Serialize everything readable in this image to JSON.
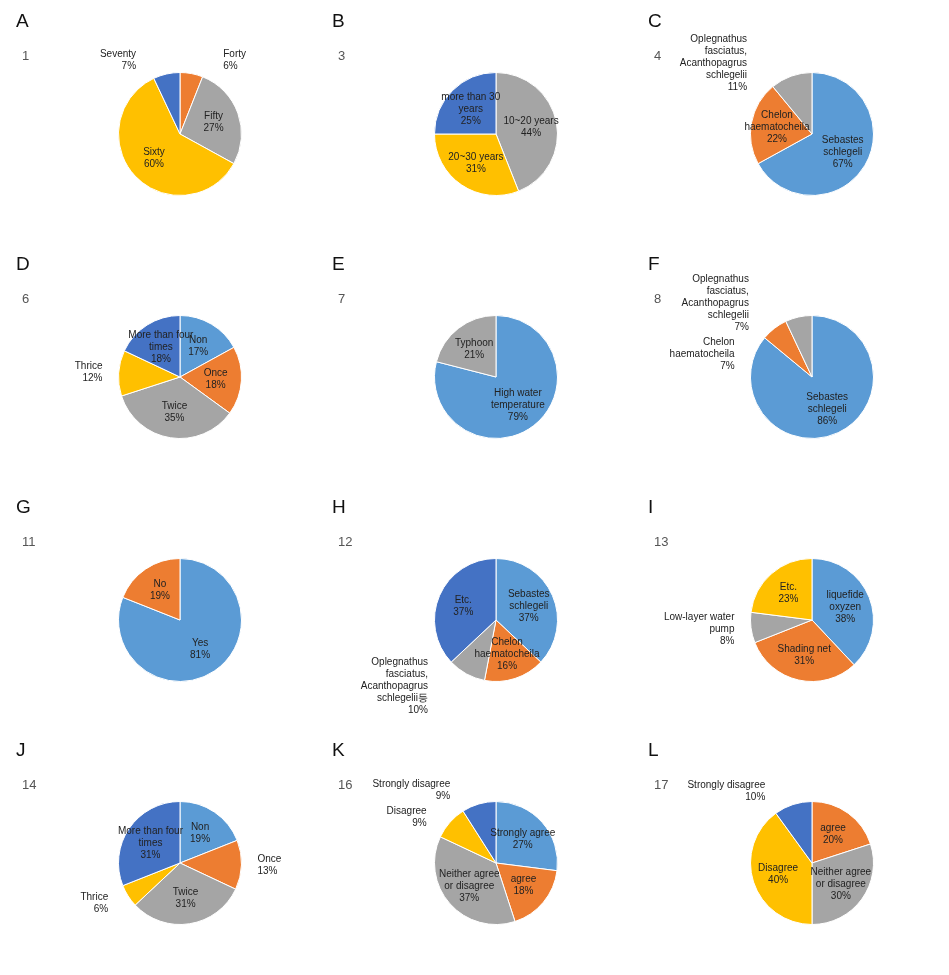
{
  "chart_data": [
    {
      "type": "pie",
      "title": "A",
      "subtitle": "1",
      "categories": [
        "Forty",
        "Fifty",
        "Sixty",
        "Seventy"
      ],
      "values": [
        6,
        27,
        60,
        7
      ],
      "value_labels": [
        "6%",
        "27%",
        "60%",
        "7%"
      ],
      "colors": [
        "#ed7d31",
        "#a5a5a5",
        "#ffc000",
        "#4472c4"
      ],
      "data_labels": true
    },
    {
      "type": "pie",
      "title": "B",
      "subtitle": "3",
      "categories": [
        "10~20 years",
        "20~30 years",
        "more than 30 years"
      ],
      "values": [
        44,
        31,
        25
      ],
      "value_labels": [
        "44%",
        "31%",
        "25%"
      ],
      "colors": [
        "#a5a5a5",
        "#ffc000",
        "#4472c4"
      ],
      "data_labels": true
    },
    {
      "type": "pie",
      "title": "C",
      "subtitle": "4",
      "categories": [
        "Sebastes schlegeli",
        "Chelon haematocheila",
        "Oplegnathus fasciatus, Acanthopagrus schlegelii"
      ],
      "values": [
        67,
        22,
        11
      ],
      "value_labels": [
        "67%",
        "22%",
        "11%"
      ],
      "colors": [
        "#5b9bd5",
        "#ed7d31",
        "#a5a5a5"
      ],
      "data_labels": true
    },
    {
      "type": "pie",
      "title": "D",
      "subtitle": "6",
      "categories": [
        "Non",
        "Once",
        "Twice",
        "Thrice",
        "More than four times"
      ],
      "values": [
        17,
        18,
        35,
        12,
        18
      ],
      "value_labels": [
        "17%",
        "18%",
        "35%",
        "12%",
        "18%"
      ],
      "colors": [
        "#5b9bd5",
        "#ed7d31",
        "#a5a5a5",
        "#ffc000",
        "#4472c4"
      ],
      "data_labels": true
    },
    {
      "type": "pie",
      "title": "E",
      "subtitle": "7",
      "categories": [
        "High water temperature",
        "Typhoon"
      ],
      "values": [
        79,
        21
      ],
      "value_labels": [
        "79%",
        "21%"
      ],
      "colors": [
        "#5b9bd5",
        "#a5a5a5"
      ],
      "data_labels": true
    },
    {
      "type": "pie",
      "title": "F",
      "subtitle": "8",
      "categories": [
        "Sebastes schlegeli",
        "Chelon haematocheila",
        "Oplegnathus fasciatus, Acanthopagrus schlegelii"
      ],
      "values": [
        86,
        7,
        7
      ],
      "value_labels": [
        "86%",
        "7%",
        "7%"
      ],
      "colors": [
        "#5b9bd5",
        "#ed7d31",
        "#a5a5a5"
      ],
      "data_labels": true
    },
    {
      "type": "pie",
      "title": "G",
      "subtitle": "11",
      "categories": [
        "Yes",
        "No"
      ],
      "values": [
        81,
        19
      ],
      "value_labels": [
        "81%",
        "19%"
      ],
      "colors": [
        "#5b9bd5",
        "#ed7d31"
      ],
      "data_labels": true
    },
    {
      "type": "pie",
      "title": "H",
      "subtitle": "12",
      "categories": [
        "Sebastes schlegeli",
        "Chelon haematocheila",
        "Oplegnathus fasciatus, Acanthopagrus schlegelii등",
        "Etc."
      ],
      "values": [
        37,
        16,
        10,
        37
      ],
      "value_labels": [
        "37%",
        "16%",
        "10%",
        "37%"
      ],
      "colors": [
        "#5b9bd5",
        "#ed7d31",
        "#a5a5a5",
        "#4472c4"
      ],
      "data_labels": true
    },
    {
      "type": "pie",
      "title": "I",
      "subtitle": "13",
      "categories": [
        "liquefide oxyzen",
        "Shading net",
        "Low-layer water pump",
        "Etc."
      ],
      "values": [
        38,
        31,
        8,
        23
      ],
      "value_labels": [
        "38%",
        "31%",
        "8%",
        "23%"
      ],
      "colors": [
        "#5b9bd5",
        "#ed7d31",
        "#a5a5a5",
        "#ffc000"
      ],
      "data_labels": true
    },
    {
      "type": "pie",
      "title": "J",
      "subtitle": "14",
      "categories": [
        "Non",
        "Once",
        "Twice",
        "Thrice",
        "More than four times"
      ],
      "values": [
        19,
        13,
        31,
        6,
        31
      ],
      "value_labels": [
        "19%",
        "13%",
        "31%",
        "6%",
        "31%"
      ],
      "colors": [
        "#5b9bd5",
        "#ed7d31",
        "#a5a5a5",
        "#ffc000",
        "#4472c4"
      ],
      "data_labels": true
    },
    {
      "type": "pie",
      "title": "K",
      "subtitle": "16",
      "categories": [
        "Strongly agree",
        "agree",
        "Neither agree or disagree",
        "Disagree",
        "Strongly disagree"
      ],
      "values": [
        27,
        18,
        37,
        9,
        9
      ],
      "value_labels": [
        "27%",
        "18%",
        "37%",
        "9%",
        "9%"
      ],
      "colors": [
        "#5b9bd5",
        "#ed7d31",
        "#a5a5a5",
        "#ffc000",
        "#4472c4"
      ],
      "data_labels": true
    },
    {
      "type": "pie",
      "title": "L",
      "subtitle": "17",
      "categories": [
        "agree",
        "Neither agree or disagree",
        "Disagree",
        "Strongly disagree"
      ],
      "values": [
        20,
        30,
        40,
        10
      ],
      "value_labels": [
        "20%",
        "30%",
        "40%",
        "10%"
      ],
      "colors": [
        "#ed7d31",
        "#a5a5a5",
        "#ffc000",
        "#4472c4"
      ],
      "data_labels": true
    }
  ]
}
